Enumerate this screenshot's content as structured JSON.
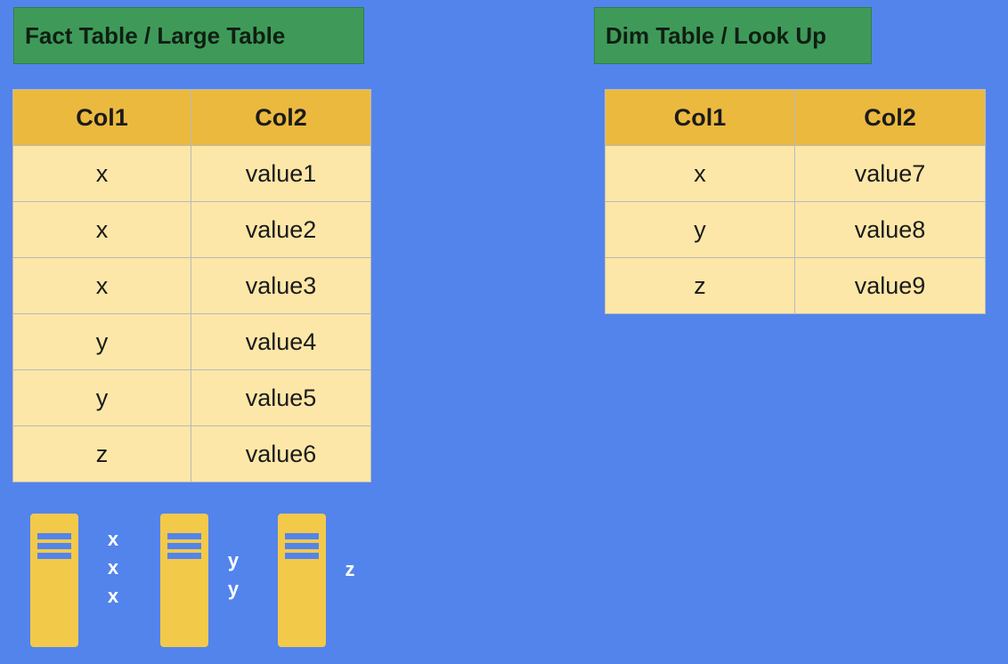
{
  "fact": {
    "title": "Fact Table / Large Table",
    "headers": [
      "Col1",
      "Col2"
    ],
    "rows": [
      [
        "x",
        "value1"
      ],
      [
        "x",
        "value2"
      ],
      [
        "x",
        "value3"
      ],
      [
        "y",
        "value4"
      ],
      [
        "y",
        "value5"
      ],
      [
        "z",
        "value6"
      ]
    ]
  },
  "dim": {
    "title": "Dim Table / Look Up",
    "headers": [
      "Col1",
      "Col2"
    ],
    "rows": [
      [
        "x",
        "value7"
      ],
      [
        "y",
        "value8"
      ],
      [
        "z",
        "value9"
      ]
    ]
  },
  "partitions": [
    {
      "icon": "server-icon",
      "keys": [
        "x",
        "x",
        "x"
      ]
    },
    {
      "icon": "server-icon",
      "keys": [
        "y",
        "y"
      ]
    },
    {
      "icon": "server-icon",
      "keys": [
        "z"
      ]
    }
  ],
  "colors": {
    "background": "#5284ec",
    "title_box": "#3f9a5a",
    "header": "#ecb93f",
    "cell": "#fde7a8",
    "server": "#f3c94a"
  }
}
